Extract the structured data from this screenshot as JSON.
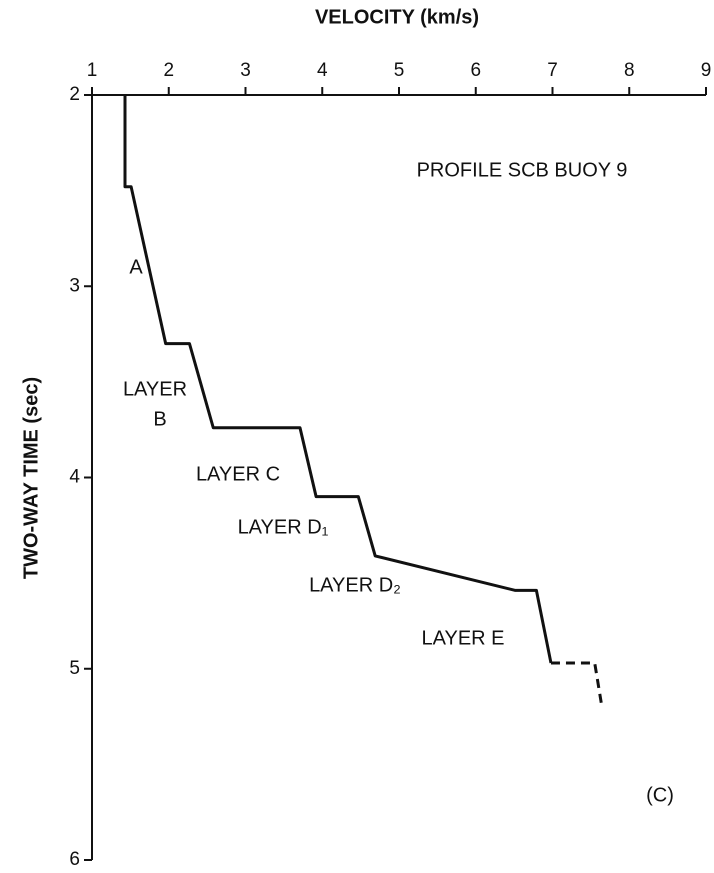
{
  "chart_data": {
    "type": "line",
    "title": "VELOCITY (km/s)",
    "y_label": "TWO-WAY TIME (sec)",
    "xlim": [
      1,
      9
    ],
    "xticks": [
      1,
      2,
      3,
      4,
      5,
      6,
      7,
      8,
      9
    ],
    "ylim": [
      2,
      6
    ],
    "yticks": [
      2,
      3,
      4,
      5,
      6
    ],
    "y_inverted": true,
    "x_axis_position": "top",
    "color": "#111111",
    "series": [
      {
        "x": [
          1.43,
          1.43,
          1.51,
          1.96,
          2.27,
          2.58,
          3.71,
          3.92,
          4.47,
          4.69,
          6.51,
          6.79,
          6.98
        ],
        "values": [
          2.0,
          2.48,
          2.48,
          3.3,
          3.3,
          3.74,
          3.74,
          4.1,
          4.1,
          4.41,
          4.59,
          4.59,
          4.97
        ],
        "dashed": false
      },
      {
        "x": [
          6.98,
          7.55,
          7.64
        ],
        "values": [
          4.97,
          4.97,
          5.19
        ],
        "dashed": true
      }
    ],
    "annotations": [
      "PROFILE SCB BUOY 9",
      "A",
      "LAYER",
      "B",
      "LAYER C",
      "LAYER D₁",
      "LAYER D₂",
      "LAYER E",
      "(C)"
    ]
  }
}
